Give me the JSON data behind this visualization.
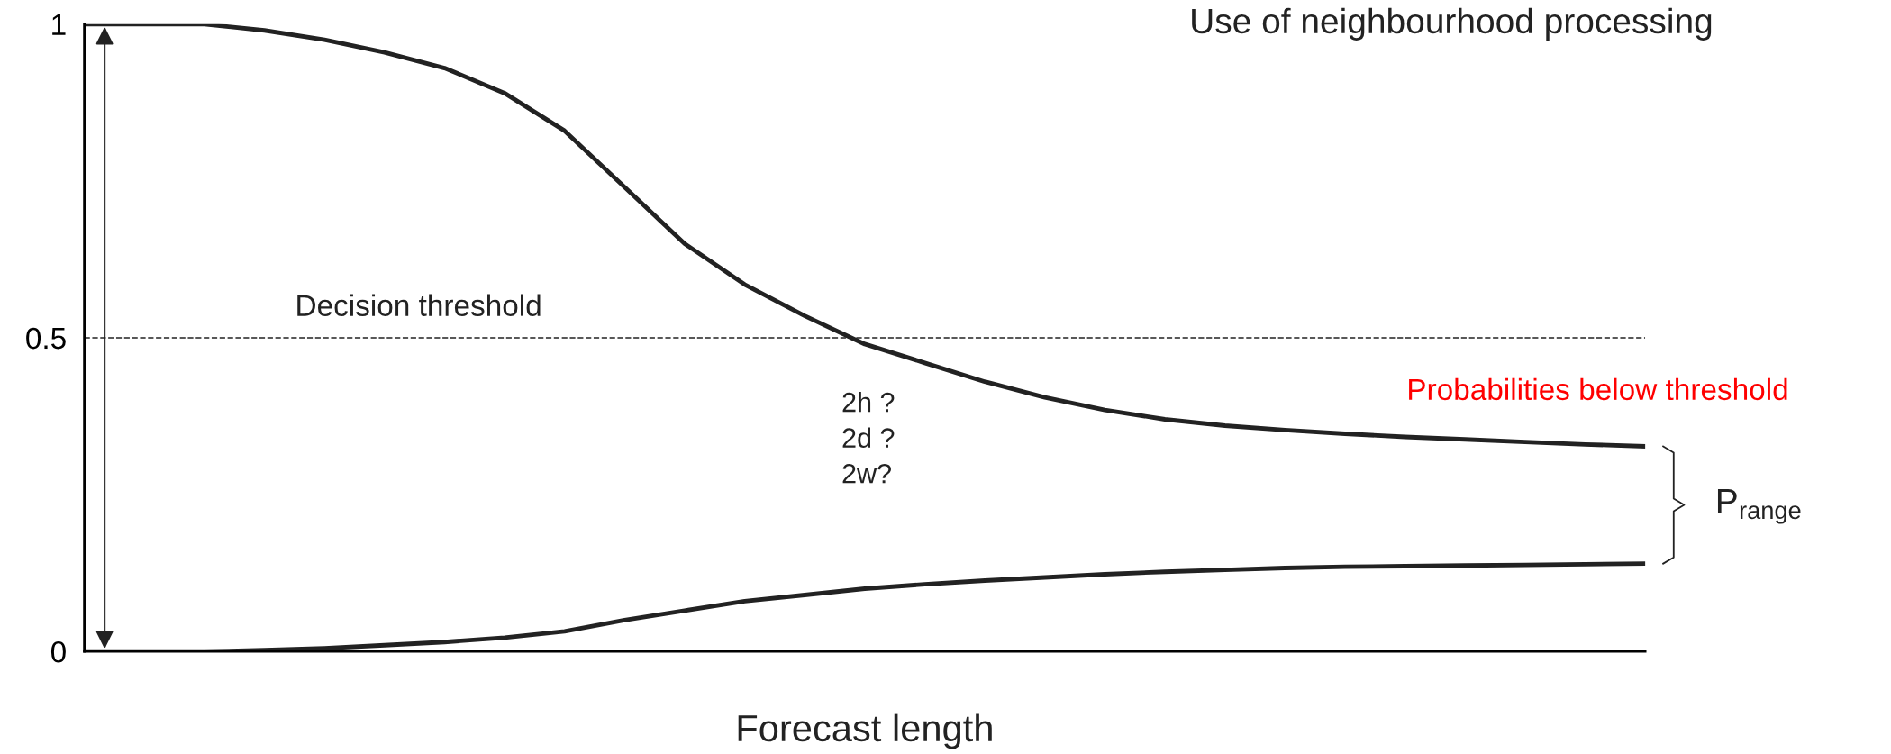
{
  "chart_data": {
    "type": "line",
    "title": "Use of neighbourhood processing",
    "xlabel": "Forecast length",
    "categories": [
      null,
      null,
      null,
      null,
      null,
      null,
      null,
      null,
      null,
      null,
      null,
      null,
      null,
      null,
      null,
      null,
      null,
      null,
      null,
      null,
      null,
      null,
      null,
      null,
      null,
      null,
      null
    ],
    "series": [
      {
        "color": "#222222",
        "values": [
          1.0,
          1.0,
          1.0,
          0.99,
          0.975,
          0.955,
          0.93,
          0.89,
          0.83,
          0.74,
          0.65,
          0.585,
          0.535,
          0.49,
          0.46,
          0.43,
          0.405,
          0.385,
          0.37,
          0.36,
          0.353,
          0.347,
          0.342,
          0.338,
          0.334,
          0.33,
          0.327
        ]
      },
      {
        "color": "#222222",
        "values": [
          0,
          0,
          0,
          0.002,
          0.005,
          0.01,
          0.015,
          0.022,
          0.032,
          0.05,
          0.065,
          0.08,
          0.09,
          0.1,
          0.107,
          0.113,
          0.118,
          0.123,
          0.127,
          0.13,
          0.133,
          0.135,
          0.136,
          0.137,
          0.138,
          0.139,
          0.14
        ]
      }
    ],
    "ylim": [
      0,
      1
    ],
    "yticks": [
      0,
      0.5,
      1
    ],
    "tick_labels": "y",
    "grid": false,
    "legend": false,
    "marker": "none",
    "line_style": "solid",
    "ref_lines": [
      {
        "axis": "y",
        "value": 0.5,
        "label": "Decision threshold",
        "color": "#222222",
        "line_style": "dashed"
      }
    ],
    "annotations": [
      "2h ?\n2d ?\n2w?",
      "Probabilities below threshold",
      "P$_{range}$"
    ]
  }
}
